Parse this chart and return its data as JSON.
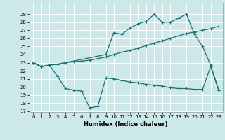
{
  "xlabel": "Humidex (Indice chaleur)",
  "bg_color": "#cce8e8",
  "grid_color": "#ffffff",
  "line_color": "#1a7070",
  "ylim": [
    17,
    30
  ],
  "xlim": [
    -0.5,
    23.5
  ],
  "yticks": [
    17,
    18,
    19,
    20,
    21,
    22,
    23,
    24,
    25,
    26,
    27,
    28,
    29
  ],
  "xticks": [
    0,
    1,
    2,
    3,
    4,
    5,
    6,
    7,
    8,
    9,
    10,
    11,
    12,
    13,
    14,
    15,
    16,
    17,
    18,
    19,
    20,
    21,
    22,
    23
  ],
  "line1_x": [
    0,
    1,
    2,
    3,
    4,
    5,
    6,
    7,
    8,
    9,
    10,
    11,
    12,
    13,
    14,
    15,
    16,
    17,
    18,
    19,
    20,
    21,
    22,
    23
  ],
  "line1_y": [
    23.0,
    22.5,
    22.7,
    22.8,
    23.0,
    23.1,
    23.2,
    23.3,
    23.5,
    23.7,
    24.0,
    24.3,
    24.5,
    24.8,
    25.1,
    25.4,
    25.7,
    26.0,
    26.3,
    26.6,
    26.8,
    27.0,
    27.2,
    27.5
  ],
  "line2_x": [
    0,
    1,
    2,
    3,
    4,
    5,
    6,
    7,
    8,
    9,
    10,
    11,
    12,
    13,
    14,
    15,
    16,
    17,
    18,
    19,
    20,
    21,
    22,
    23
  ],
  "line2_y": [
    23.0,
    22.5,
    22.7,
    21.3,
    19.8,
    19.6,
    19.5,
    17.4,
    17.6,
    21.1,
    21.0,
    20.8,
    20.6,
    20.5,
    20.3,
    20.2,
    20.1,
    19.9,
    19.8,
    19.8,
    19.7,
    19.7,
    22.5,
    19.6
  ],
  "line3_x": [
    0,
    1,
    2,
    3,
    9,
    10,
    11,
    12,
    13,
    14,
    15,
    16,
    17,
    18,
    19,
    20,
    21,
    22,
    23
  ],
  "line3_y": [
    23.0,
    22.5,
    22.7,
    22.8,
    24.0,
    26.7,
    26.5,
    27.3,
    27.8,
    28.1,
    29.0,
    28.0,
    28.0,
    28.5,
    29.0,
    26.5,
    25.0,
    22.7,
    19.6
  ]
}
